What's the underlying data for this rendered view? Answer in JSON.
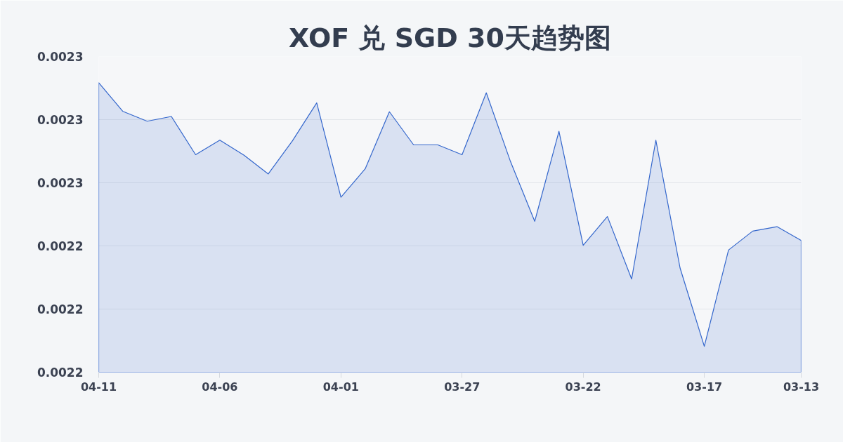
{
  "chart_data": {
    "type": "area",
    "title": "XOF 兑 SGD 30天趋势图",
    "categories": [
      "04-11",
      null,
      null,
      null,
      null,
      "04-06",
      null,
      null,
      null,
      null,
      "04-01",
      null,
      null,
      null,
      null,
      "03-27",
      null,
      null,
      null,
      null,
      "03-22",
      null,
      null,
      null,
      null,
      "03-17",
      null,
      null,
      null,
      "03-13"
    ],
    "series": [
      {
        "color": "#3366cc",
        "values": [
          0.0022917,
          0.0022826,
          0.0022795,
          0.002281,
          0.0022689,
          0.0022735,
          0.0022687,
          0.0022628,
          0.0022733,
          0.0022853,
          0.0022554,
          0.0022644,
          0.0022825,
          0.002272,
          0.002272,
          0.0022689,
          0.0022885,
          0.0022667,
          0.0022478,
          0.0022763,
          0.0022402,
          0.0022493,
          0.0022295,
          0.0022735,
          0.002233,
          0.0022082,
          0.0022387,
          0.0022447,
          0.0022461,
          0.0022417
        ]
      }
    ],
    "ylim": [
      0.0022,
      0.0023
    ],
    "yticks": [
      {
        "value": 0.0022,
        "label": "0.0022"
      },
      {
        "value": 0.00222,
        "label": "0.0022"
      },
      {
        "value": 0.00224,
        "label": "0.0022"
      },
      {
        "value": 0.00226,
        "label": "0.0023"
      },
      {
        "value": 0.00228,
        "label": "0.0023"
      },
      {
        "value": 0.0023,
        "label": "0.0023"
      }
    ],
    "grid": "y"
  }
}
